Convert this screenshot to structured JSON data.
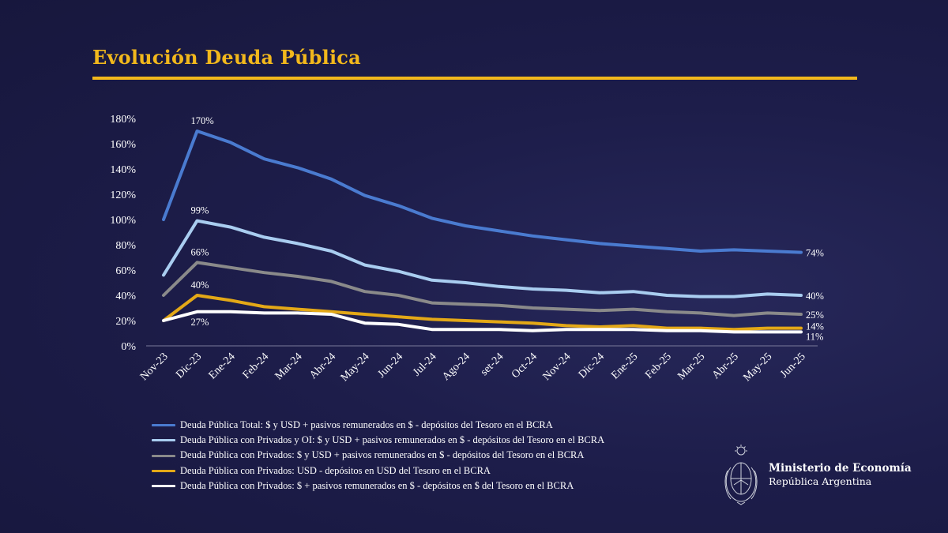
{
  "slide": {
    "title": "Evolución Deuda Pública",
    "accent_color": "#f2b81c"
  },
  "chart_data": {
    "type": "line",
    "title": "",
    "xlabel": "",
    "ylabel": "",
    "ylim": [
      0,
      180
    ],
    "y_ticks": [
      "0%",
      "20%",
      "40%",
      "60%",
      "80%",
      "100%",
      "120%",
      "140%",
      "160%",
      "180%"
    ],
    "grid": false,
    "legend_position": "bottom-left",
    "categories": [
      "Nov-23",
      "Dic-23",
      "Ene-24",
      "Feb-24",
      "Mar-24",
      "Abr-24",
      "May-24",
      "Jun-24",
      "Jul-24",
      "Ago-24",
      "set-24",
      "Oct-24",
      "Nov-24",
      "Dic-24",
      "Ene-25",
      "Feb-25",
      "Mar-25",
      "Abr-25",
      "May-25",
      "Jun-25"
    ],
    "series": [
      {
        "name": "Deuda Pública Total: $ y USD + pasivos remunerados en $ - depósitos del Tesoro en el BCRA",
        "color": "#4a7bd0",
        "values": [
          100,
          170,
          161,
          148,
          141,
          132,
          119,
          111,
          101,
          95,
          91,
          87,
          84,
          81,
          79,
          77,
          75,
          76,
          75,
          74
        ],
        "labels": [
          {
            "index": 1,
            "text": "170%"
          },
          {
            "index": 19,
            "text": "74%"
          }
        ]
      },
      {
        "name": "Deuda Pública con Privados y OI: $ y USD + pasivos remunerados en $ - depósitos del Tesoro en el BCRA",
        "color": "#a9cdf0",
        "values": [
          56,
          99,
          94,
          86,
          81,
          75,
          64,
          59,
          52,
          50,
          47,
          45,
          44,
          42,
          43,
          40,
          39,
          39,
          41,
          40
        ],
        "labels": [
          {
            "index": 1,
            "text": "99%"
          },
          {
            "index": 19,
            "text": "40%"
          }
        ]
      },
      {
        "name": "Deuda Pública con Privados: $ y USD + pasivos remunerados en $ - depósitos del Tesoro en el BCRA",
        "color": "#8a8a8a",
        "values": [
          40,
          66,
          62,
          58,
          55,
          51,
          43,
          40,
          34,
          33,
          32,
          30,
          29,
          28,
          29,
          27,
          26,
          24,
          26,
          25
        ],
        "labels": [
          {
            "index": 1,
            "text": "66%"
          },
          {
            "index": 19,
            "text": "25%"
          }
        ]
      },
      {
        "name": "Deuda Pública con Privados: USD - depósitos en USD del Tesoro en el BCRA",
        "color": "#e3a817",
        "values": [
          20,
          40,
          36,
          31,
          29,
          27,
          25,
          23,
          21,
          20,
          19,
          18,
          16,
          15,
          16,
          14,
          14,
          13,
          14,
          14
        ],
        "labels": [
          {
            "index": 1,
            "text": "40%"
          },
          {
            "index": 19,
            "text": "14%"
          }
        ]
      },
      {
        "name": "Deuda Pública con Privados: $ + pasivos remunerados en $ - depósitos en $ del Tesoro en el BCRA",
        "color": "#ffffff",
        "values": [
          20,
          27,
          27,
          26,
          26,
          25,
          18,
          17,
          13,
          13,
          13,
          12,
          13,
          13,
          13,
          12,
          12,
          11,
          11,
          11
        ],
        "labels": [
          {
            "index": 1,
            "text": "27%"
          },
          {
            "index": 19,
            "text": "11%"
          }
        ]
      }
    ]
  },
  "ministry": {
    "name": "Ministerio de Economía",
    "country": "República Argentina",
    "emblem_icon": "coat-of-arms-icon"
  }
}
